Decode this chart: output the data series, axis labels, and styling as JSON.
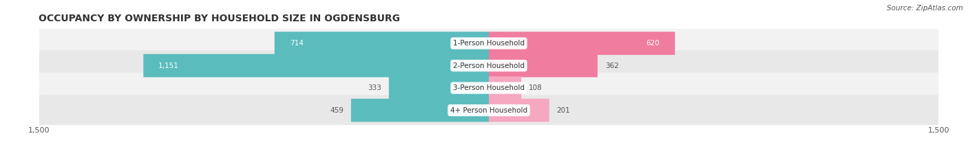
{
  "title": "OCCUPANCY BY OWNERSHIP BY HOUSEHOLD SIZE IN OGDENSBURG",
  "source": "Source: ZipAtlas.com",
  "categories": [
    "1-Person Household",
    "2-Person Household",
    "3-Person Household",
    "4+ Person Household"
  ],
  "owner_values": [
    714,
    1151,
    333,
    459
  ],
  "renter_values": [
    620,
    362,
    108,
    201
  ],
  "max_axis": 1500,
  "owner_color": "#5bbcbe",
  "renter_color": "#f07ca0",
  "owner_color_light": "#8dd4d5",
  "renter_color_light": "#f5a8c0",
  "row_bg_light": "#f2f2f2",
  "row_bg_dark": "#e8e8e8",
  "title_fontsize": 10,
  "label_fontsize": 7.5,
  "value_fontsize": 7.5,
  "tick_fontsize": 8,
  "legend_fontsize": 8,
  "source_fontsize": 7.5
}
